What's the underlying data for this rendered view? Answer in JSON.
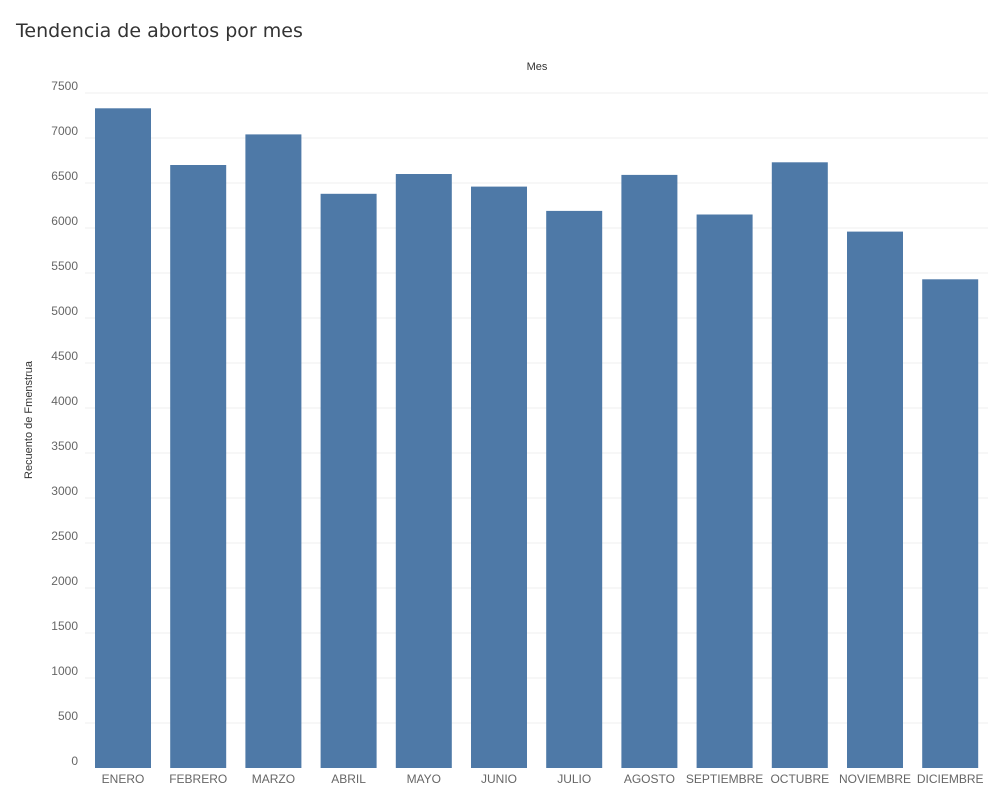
{
  "chart_data": {
    "type": "bar",
    "title": "Tendencia de abortos por mes",
    "xlabel": "Mes",
    "ylabel": "Recuento de Fmenstrua",
    "categories": [
      "ENERO",
      "FEBRERO",
      "MARZO",
      "ABRIL",
      "MAYO",
      "JUNIO",
      "JULIO",
      "AGOSTO",
      "SEPTIEMBRE",
      "OCTUBRE",
      "NOVIEMBRE",
      "DICIEMBRE"
    ],
    "values": [
      7330,
      6700,
      7040,
      6380,
      6600,
      6460,
      6190,
      6590,
      6150,
      6730,
      5960,
      5430
    ],
    "ylim": [
      0,
      7700
    ],
    "yticks": [
      0,
      500,
      1000,
      1500,
      2000,
      2500,
      3000,
      3500,
      4000,
      4500,
      5000,
      5500,
      6000,
      6500,
      7000,
      7500
    ],
    "grid": true,
    "bar_color": "#4e79a7"
  }
}
